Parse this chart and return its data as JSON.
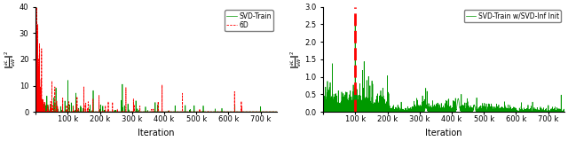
{
  "left_ylim": [
    0,
    40
  ],
  "right_ylim": [
    0,
    3
  ],
  "xlim": [
    0,
    750000
  ],
  "xlabel": "Iteration",
  "left_legend": [
    "SVD-Train",
    "6D"
  ],
  "right_legend": [
    "SVD-Train w/SVD-Inf Init"
  ],
  "left_line_color": "#009900",
  "right_line_color": "#009900",
  "red_dash_color": "#ff0000",
  "right_vline_x": 100000,
  "tick_positions": [
    0,
    100000,
    200000,
    300000,
    400000,
    500000,
    600000,
    700000
  ],
  "tick_labels": [
    "",
    "100 k",
    "200 k",
    "300 k",
    "400 k",
    "500 k",
    "600 k",
    "700 k"
  ],
  "left_yticks": [
    0,
    10,
    20,
    30,
    40
  ],
  "right_yticks": [
    0,
    0.5,
    1.0,
    1.5,
    2.0,
    2.5,
    3.0
  ]
}
